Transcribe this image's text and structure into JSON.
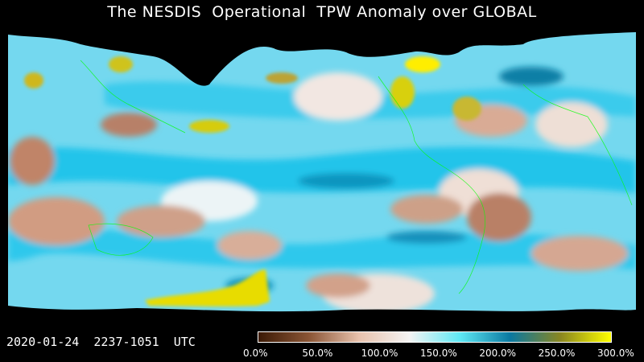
{
  "title": "The NESDIS  Operational  TPW Anomaly over GLOBAL",
  "timestamp": "2020-01-24  2237-1051  UTC",
  "colorbar": {
    "labels": [
      "0.0%",
      "50.0%",
      "100.0%",
      "150.0%",
      "200.0%",
      "250.0%",
      "300.0%"
    ],
    "colors": [
      "#3b1a05",
      "#8a5535",
      "#e8c2ad",
      "#f4f4f4",
      "#5ee8f4",
      "#0a78a0",
      "#8a8620",
      "#ffff00"
    ]
  },
  "palette": {
    "background": "#000000",
    "dry": "#c99074",
    "normal": "#e6f2f6",
    "wet": "#1dc6ea",
    "very_wet": "#138fb5",
    "extreme": "#e3d800",
    "coastline": "#00ff00"
  }
}
